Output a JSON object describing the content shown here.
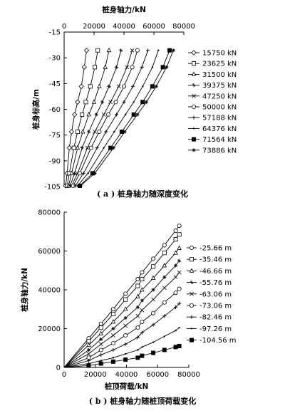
{
  "chart_data": [
    {
      "type": "line",
      "caption": "( a ) 桩身轴力随深度变化",
      "xlabel": "桩身轴力/kN",
      "ylabel": "桩身标高/m",
      "xlim": [
        0,
        80000
      ],
      "ylim": [
        -105,
        -15
      ],
      "xticks": [
        0,
        20000,
        40000,
        60000,
        80000
      ],
      "yticks": [
        -15,
        -30,
        -45,
        -60,
        -75,
        -90,
        -105
      ],
      "x_axis_position": "top",
      "legend_position": "right",
      "series": [
        {
          "name": "15750 kN",
          "marker": "diamond-open",
          "points": [
            [
              15000,
              -25.66
            ],
            [
              13500,
              -35.46
            ],
            [
              11500,
              -46.66
            ],
            [
              9000,
              -55.76
            ],
            [
              7000,
              -63.06
            ],
            [
              5000,
              -73.06
            ],
            [
              3500,
              -82.46
            ],
            [
              2000,
              -97.26
            ],
            [
              1000,
              -104.56
            ]
          ]
        },
        {
          "name": "23625 kN",
          "marker": "square-open",
          "points": [
            [
              22500,
              -25.66
            ],
            [
              20500,
              -35.46
            ],
            [
              17500,
              -46.66
            ],
            [
              14500,
              -55.76
            ],
            [
              12000,
              -63.06
            ],
            [
              9000,
              -73.06
            ],
            [
              6500,
              -82.46
            ],
            [
              3500,
              -97.26
            ],
            [
              2000,
              -104.56
            ]
          ]
        },
        {
          "name": "31500 kN",
          "marker": "triangle-open",
          "points": [
            [
              30000,
              -25.66
            ],
            [
              27500,
              -35.46
            ],
            [
              23500,
              -46.66
            ],
            [
              20000,
              -55.76
            ],
            [
              16500,
              -63.06
            ],
            [
              12500,
              -73.06
            ],
            [
              9000,
              -82.46
            ],
            [
              5000,
              -97.26
            ],
            [
              3000,
              -104.56
            ]
          ]
        },
        {
          "name": "39375 kN",
          "marker": "cross",
          "points": [
            [
              38000,
              -25.66
            ],
            [
              35000,
              -35.46
            ],
            [
              30000,
              -46.66
            ],
            [
              25500,
              -55.76
            ],
            [
              21500,
              -63.06
            ],
            [
              16500,
              -73.06
            ],
            [
              12000,
              -82.46
            ],
            [
              7000,
              -97.26
            ],
            [
              4000,
              -104.56
            ]
          ]
        },
        {
          "name": "47250 kN",
          "marker": "x",
          "points": [
            [
              45500,
              -25.66
            ],
            [
              42000,
              -35.46
            ],
            [
              36500,
              -46.66
            ],
            [
              31000,
              -55.76
            ],
            [
              26500,
              -63.06
            ],
            [
              20500,
              -73.06
            ],
            [
              15500,
              -82.46
            ],
            [
              9000,
              -97.26
            ],
            [
              5000,
              -104.56
            ]
          ]
        },
        {
          "name": "50000 kN",
          "marker": "circle-open",
          "points": [
            [
              49000,
              -25.66
            ],
            [
              45500,
              -35.46
            ],
            [
              40000,
              -46.66
            ],
            [
              34500,
              -55.76
            ],
            [
              29500,
              -63.06
            ],
            [
              23500,
              -73.06
            ],
            [
              18000,
              -82.46
            ],
            [
              10500,
              -97.26
            ],
            [
              6000,
              -104.56
            ]
          ]
        },
        {
          "name": "57188 kN",
          "marker": "plus",
          "points": [
            [
              56000,
              -25.66
            ],
            [
              52000,
              -35.46
            ],
            [
              46000,
              -46.66
            ],
            [
              40000,
              -55.76
            ],
            [
              35000,
              -63.06
            ],
            [
              28000,
              -73.06
            ],
            [
              22000,
              -82.46
            ],
            [
              13000,
              -97.26
            ],
            [
              7500,
              -104.56
            ]
          ]
        },
        {
          "name": "64376 kN",
          "marker": "dot",
          "points": [
            [
              63000,
              -25.66
            ],
            [
              59000,
              -35.46
            ],
            [
              52500,
              -46.66
            ],
            [
              46500,
              -55.76
            ],
            [
              41000,
              -63.06
            ],
            [
              33500,
              -73.06
            ],
            [
              26500,
              -82.46
            ],
            [
              16000,
              -97.26
            ],
            [
              9000,
              -104.56
            ]
          ]
        },
        {
          "name": "71564 kN",
          "marker": "square-filled",
          "points": [
            [
              70500,
              -25.66
            ],
            [
              66000,
              -35.46
            ],
            [
              59000,
              -46.66
            ],
            [
              52500,
              -55.76
            ],
            [
              46500,
              -63.06
            ],
            [
              38500,
              -73.06
            ],
            [
              31000,
              -82.46
            ],
            [
              19000,
              -97.26
            ],
            [
              10500,
              -104.56
            ]
          ]
        },
        {
          "name": "73886 kN",
          "marker": "star",
          "points": [
            [
              73000,
              -25.66
            ],
            [
              68500,
              -35.46
            ],
            [
              61500,
              -46.66
            ],
            [
              55000,
              -55.76
            ],
            [
              49000,
              -63.06
            ],
            [
              40500,
              -73.06
            ],
            [
              33000,
              -82.46
            ],
            [
              20500,
              -97.26
            ],
            [
              11000,
              -104.56
            ]
          ]
        }
      ]
    },
    {
      "type": "line",
      "caption": "( b ) 桩身轴力随桩顶荷载变化",
      "xlabel": "桩顶荷载/kN",
      "ylabel": "桩身轴力/kN",
      "xlim": [
        0,
        80000
      ],
      "ylim": [
        0,
        80000
      ],
      "xticks": [
        0,
        20000,
        40000,
        60000,
        80000
      ],
      "yticks": [
        0,
        20000,
        40000,
        60000,
        80000
      ],
      "legend_position": "right",
      "x": [
        0,
        15750,
        23625,
        31500,
        39375,
        47250,
        50000,
        57188,
        64376,
        71564,
        73886
      ],
      "series": [
        {
          "name": "-25.66 m",
          "marker": "circle-open",
          "values": [
            0,
            15000,
            22500,
            30000,
            38000,
            45500,
            49000,
            56000,
            63000,
            70500,
            73000
          ]
        },
        {
          "name": "-35.46 m",
          "marker": "square-open",
          "values": [
            0,
            13500,
            20500,
            27500,
            35000,
            42000,
            45500,
            52000,
            59000,
            66000,
            68500
          ]
        },
        {
          "name": "-46.66 m",
          "marker": "triangle-open",
          "values": [
            0,
            11500,
            17500,
            23500,
            30000,
            36500,
            40000,
            46000,
            52500,
            59000,
            61500
          ]
        },
        {
          "name": "-55.76 m",
          "marker": "cross",
          "values": [
            0,
            9000,
            14500,
            20000,
            25500,
            31000,
            34500,
            40000,
            46500,
            52500,
            55000
          ]
        },
        {
          "name": "-63.06 m",
          "marker": "x",
          "values": [
            0,
            7000,
            12000,
            16500,
            21500,
            26500,
            29500,
            35000,
            41000,
            46500,
            49000
          ]
        },
        {
          "name": "-73.06 m",
          "marker": "circle-open",
          "values": [
            0,
            5000,
            9000,
            12500,
            16500,
            20500,
            23500,
            28000,
            33500,
            38500,
            40500
          ]
        },
        {
          "name": "-82.46 m",
          "marker": "plus",
          "values": [
            0,
            3500,
            6500,
            9000,
            12000,
            15500,
            18000,
            22000,
            26500,
            31000,
            33000
          ]
        },
        {
          "name": "-97.26 m",
          "marker": "dot",
          "values": [
            0,
            2000,
            3500,
            5000,
            7000,
            9000,
            10500,
            13000,
            16000,
            19000,
            20500
          ]
        },
        {
          "name": "-104.56 m",
          "marker": "square-filled",
          "values": [
            0,
            1000,
            2000,
            3000,
            4000,
            5000,
            6000,
            7500,
            9000,
            10500,
            11000
          ]
        }
      ]
    }
  ]
}
